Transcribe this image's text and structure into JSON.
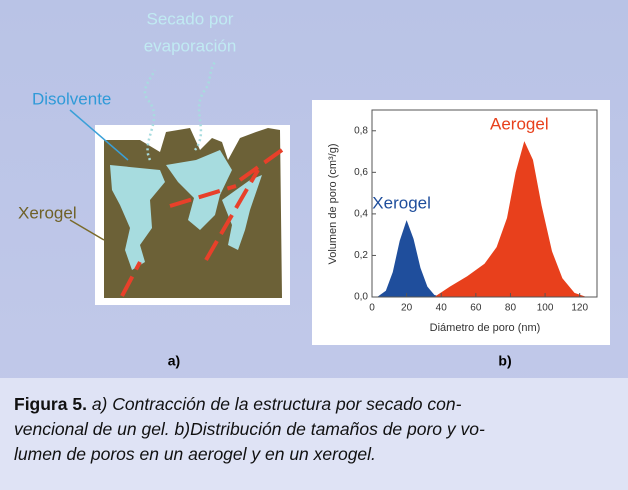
{
  "panel_a": {
    "evaporation_label": [
      "Secado por",
      "evaporación"
    ],
    "solvent_label": "Disolvente",
    "xerogel_label": "Xerogel",
    "panel_label": "a)"
  },
  "chart_data": {
    "type": "area",
    "panel_label": "b)",
    "x_label": "Diámetro de poro (nm)",
    "y_label": "Volumen de poro (cm³/g)",
    "xlim": [
      0,
      130
    ],
    "xticks": [
      0,
      20,
      40,
      60,
      80,
      100,
      120
    ],
    "ylim": [
      0,
      0.9
    ],
    "yticks": [
      {
        "value": 0,
        "label": "0,0"
      },
      {
        "value": 0.2,
        "label": "0,2"
      },
      {
        "value": 0.4,
        "label": "0,4"
      },
      {
        "value": 0.6,
        "label": "0,6"
      },
      {
        "value": 0.8,
        "label": "0,8"
      }
    ],
    "series": [
      {
        "name": "Xerogel",
        "color": "#1f4e9c",
        "x": [
          3,
          8,
          12,
          16,
          20,
          24,
          28,
          32,
          36,
          40
        ],
        "values": [
          0,
          0.03,
          0.12,
          0.27,
          0.37,
          0.28,
          0.14,
          0.05,
          0.01,
          0
        ]
      },
      {
        "name": "Aerogel",
        "color": "#e8401c",
        "x": [
          36,
          45,
          55,
          65,
          72,
          78,
          83,
          88,
          93,
          98,
          104,
          110,
          117,
          124
        ],
        "values": [
          0,
          0.05,
          0.1,
          0.16,
          0.24,
          0.38,
          0.6,
          0.75,
          0.66,
          0.44,
          0.22,
          0.09,
          0.02,
          0
        ]
      }
    ]
  },
  "caption": {
    "label": "Figura 5.",
    "lines": [
      "a) Contracción de la estructura por secado con-",
      "vencional de un gel. b)Distribución de tamaños de poro y vo-",
      "lumen de poros en un aerogel y en un xerogel."
    ]
  }
}
